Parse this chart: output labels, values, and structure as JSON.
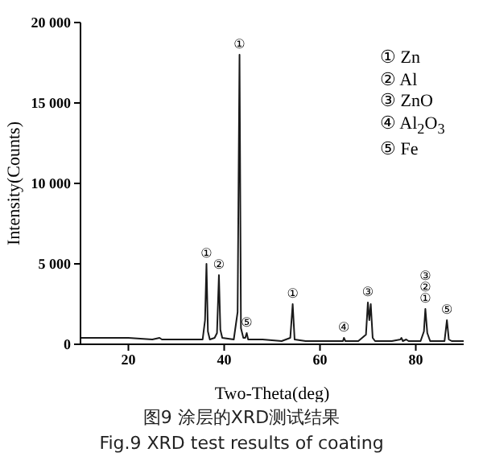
{
  "chart_data": {
    "type": "line",
    "title": "图9 涂层的XRD测试结果",
    "subtitle": "Fig.9 XRD test results of coating",
    "xlabel": "Two-Theta(deg)",
    "ylabel": "Intensity(Counts)",
    "xlim": [
      10,
      90
    ],
    "xticks": [
      20,
      40,
      60,
      80
    ],
    "ylim": [
      0,
      20000
    ],
    "yticks": [
      0,
      {
        "value": 5000,
        "label": "5 000"
      },
      {
        "value": 10000,
        "label": "10 000"
      },
      {
        "value": 15000,
        "label": "15 000"
      },
      {
        "value": 20000,
        "label": "20 000"
      }
    ],
    "grid": false,
    "marker": "none",
    "line_style": "solid",
    "series": [
      {
        "color": "#1a1a1a",
        "x": [
          10,
          15,
          20,
          25,
          26.5,
          27,
          30,
          34,
          35.5,
          36,
          36.3,
          36.6,
          37,
          38,
          38.5,
          38.9,
          39.2,
          39.6,
          42,
          42.8,
          43.2,
          43.5,
          44,
          44.4,
          44.7,
          45,
          48,
          52,
          53.8,
          54.3,
          54.7,
          57,
          62,
          64.8,
          65,
          65.3,
          68,
          69.6,
          70,
          70.3,
          70.6,
          71,
          71.5,
          75,
          76.8,
          77,
          77.3,
          78,
          78.5,
          81,
          81.7,
          82,
          82.4,
          83,
          84,
          86,
          86.5,
          86.9,
          87.5,
          90
        ],
        "values": [
          400,
          400,
          400,
          300,
          400,
          300,
          300,
          300,
          300,
          1500,
          5000,
          800,
          300,
          400,
          700,
          4300,
          900,
          400,
          300,
          2000,
          18000,
          1000,
          400,
          400,
          700,
          300,
          300,
          200,
          400,
          2500,
          300,
          200,
          200,
          200,
          400,
          200,
          200,
          600,
          2600,
          1500,
          2500,
          400,
          200,
          200,
          300,
          400,
          200,
          300,
          200,
          200,
          800,
          2200,
          700,
          200,
          200,
          200,
          1500,
          300,
          200,
          200
        ]
      }
    ],
    "annotations": [
      {
        "text": "①",
        "x": 36.3,
        "y": 5000
      },
      {
        "text": "②",
        "x": 38.9,
        "y": 4300
      },
      {
        "text": "①",
        "x": 43.2,
        "y": 18000
      },
      {
        "text": "⑤",
        "x": 44.7,
        "y": 700
      },
      {
        "text": "①",
        "x": 54.3,
        "y": 2500
      },
      {
        "text": "④",
        "x": 65,
        "y": 400
      },
      {
        "text": "③",
        "x": 70,
        "y": 2600
      },
      {
        "text": "①",
        "x": 82,
        "y": 2200
      },
      {
        "text": "②",
        "x": 82,
        "y": 2200
      },
      {
        "text": "③",
        "x": 82,
        "y": 2200
      },
      {
        "text": "⑤",
        "x": 86.5,
        "y": 1500
      },
      "① Zn",
      "② Al",
      "③ ZnO",
      "④ Al$_{2}$O$_{3}$",
      "⑤ Fe"
    ]
  }
}
